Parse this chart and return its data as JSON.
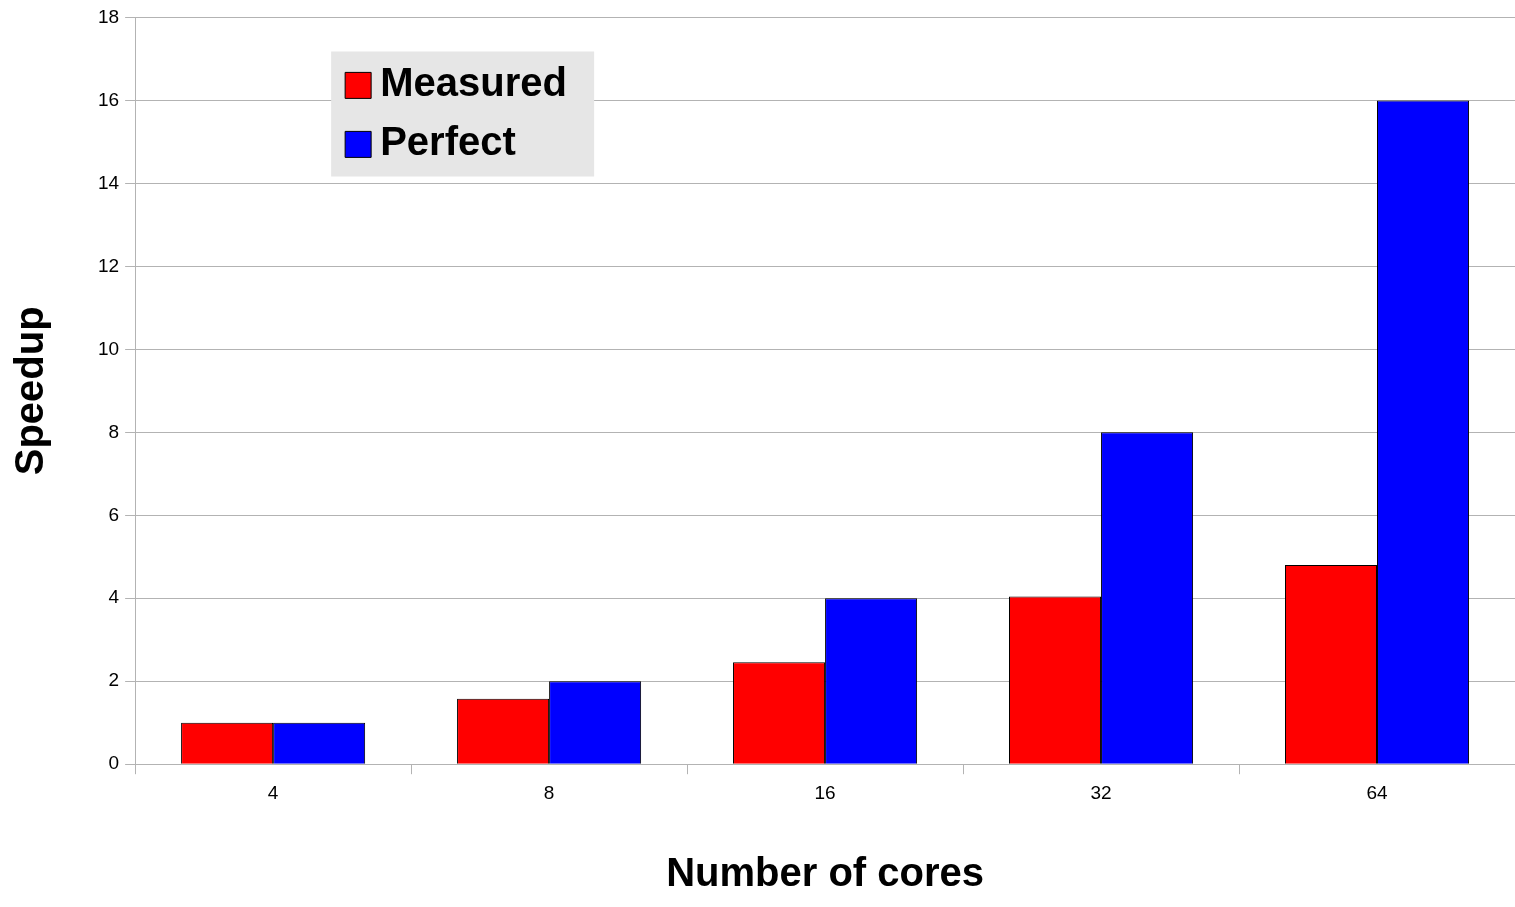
{
  "chart_data": {
    "type": "bar",
    "xlabel": "Number of cores",
    "ylabel": "Speedup",
    "categories": [
      "4",
      "8",
      "16",
      "32",
      "64"
    ],
    "series": [
      {
        "name": "Measured",
        "color": "#ff0000",
        "values": [
          1,
          1.58,
          2.46,
          4.04,
          4.8
        ]
      },
      {
        "name": "Perfect",
        "color": "#0000ff",
        "values": [
          1,
          2,
          4,
          8,
          16
        ]
      }
    ],
    "ylim": [
      0,
      18
    ],
    "yticks": [
      0,
      2,
      4,
      6,
      8,
      10,
      12,
      14,
      16,
      18
    ],
    "grid": "y",
    "legend": "top left"
  }
}
